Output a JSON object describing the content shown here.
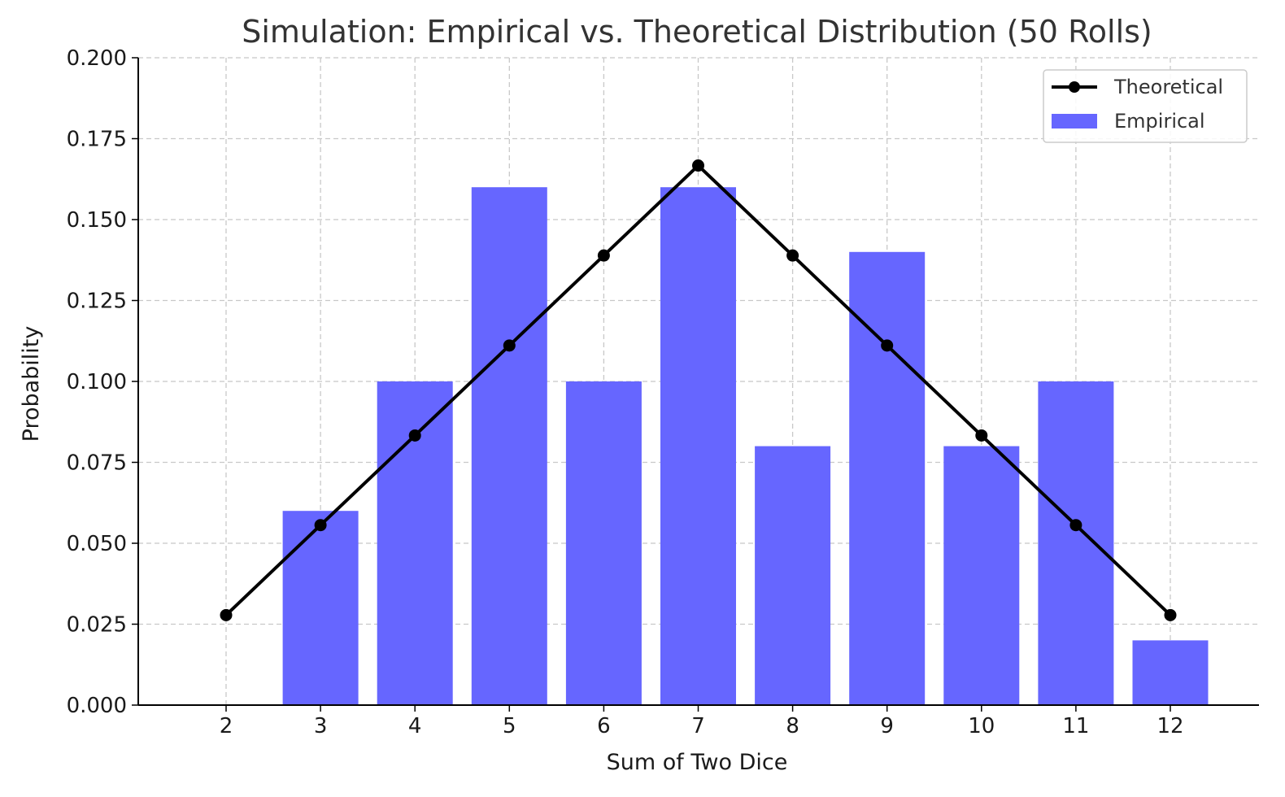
{
  "chart_data": {
    "type": "bar",
    "title": "Simulation: Empirical vs. Theoretical Distribution (50 Rolls)",
    "xlabel": "Sum of Two Dice",
    "ylabel": "Probability",
    "categories": [
      "2",
      "3",
      "4",
      "5",
      "6",
      "7",
      "8",
      "9",
      "10",
      "11",
      "12"
    ],
    "ylim": [
      0,
      0.2
    ],
    "yticks": [
      "0.000",
      "0.025",
      "0.050",
      "0.075",
      "0.100",
      "0.125",
      "0.150",
      "0.175",
      "0.200"
    ],
    "grid": true,
    "legend_position": "top-right",
    "series": [
      {
        "name": "Empirical",
        "type": "bar",
        "color": "#6666ff",
        "values": [
          0.0,
          0.06,
          0.1,
          0.16,
          0.1,
          0.16,
          0.08,
          0.14,
          0.08,
          0.1,
          0.02
        ]
      },
      {
        "name": "Theoretical",
        "type": "line",
        "color": "#000000",
        "marker": "circle",
        "values": [
          0.0278,
          0.0556,
          0.0833,
          0.1111,
          0.1389,
          0.1667,
          0.1389,
          0.1111,
          0.0833,
          0.0556,
          0.0278
        ]
      }
    ]
  }
}
